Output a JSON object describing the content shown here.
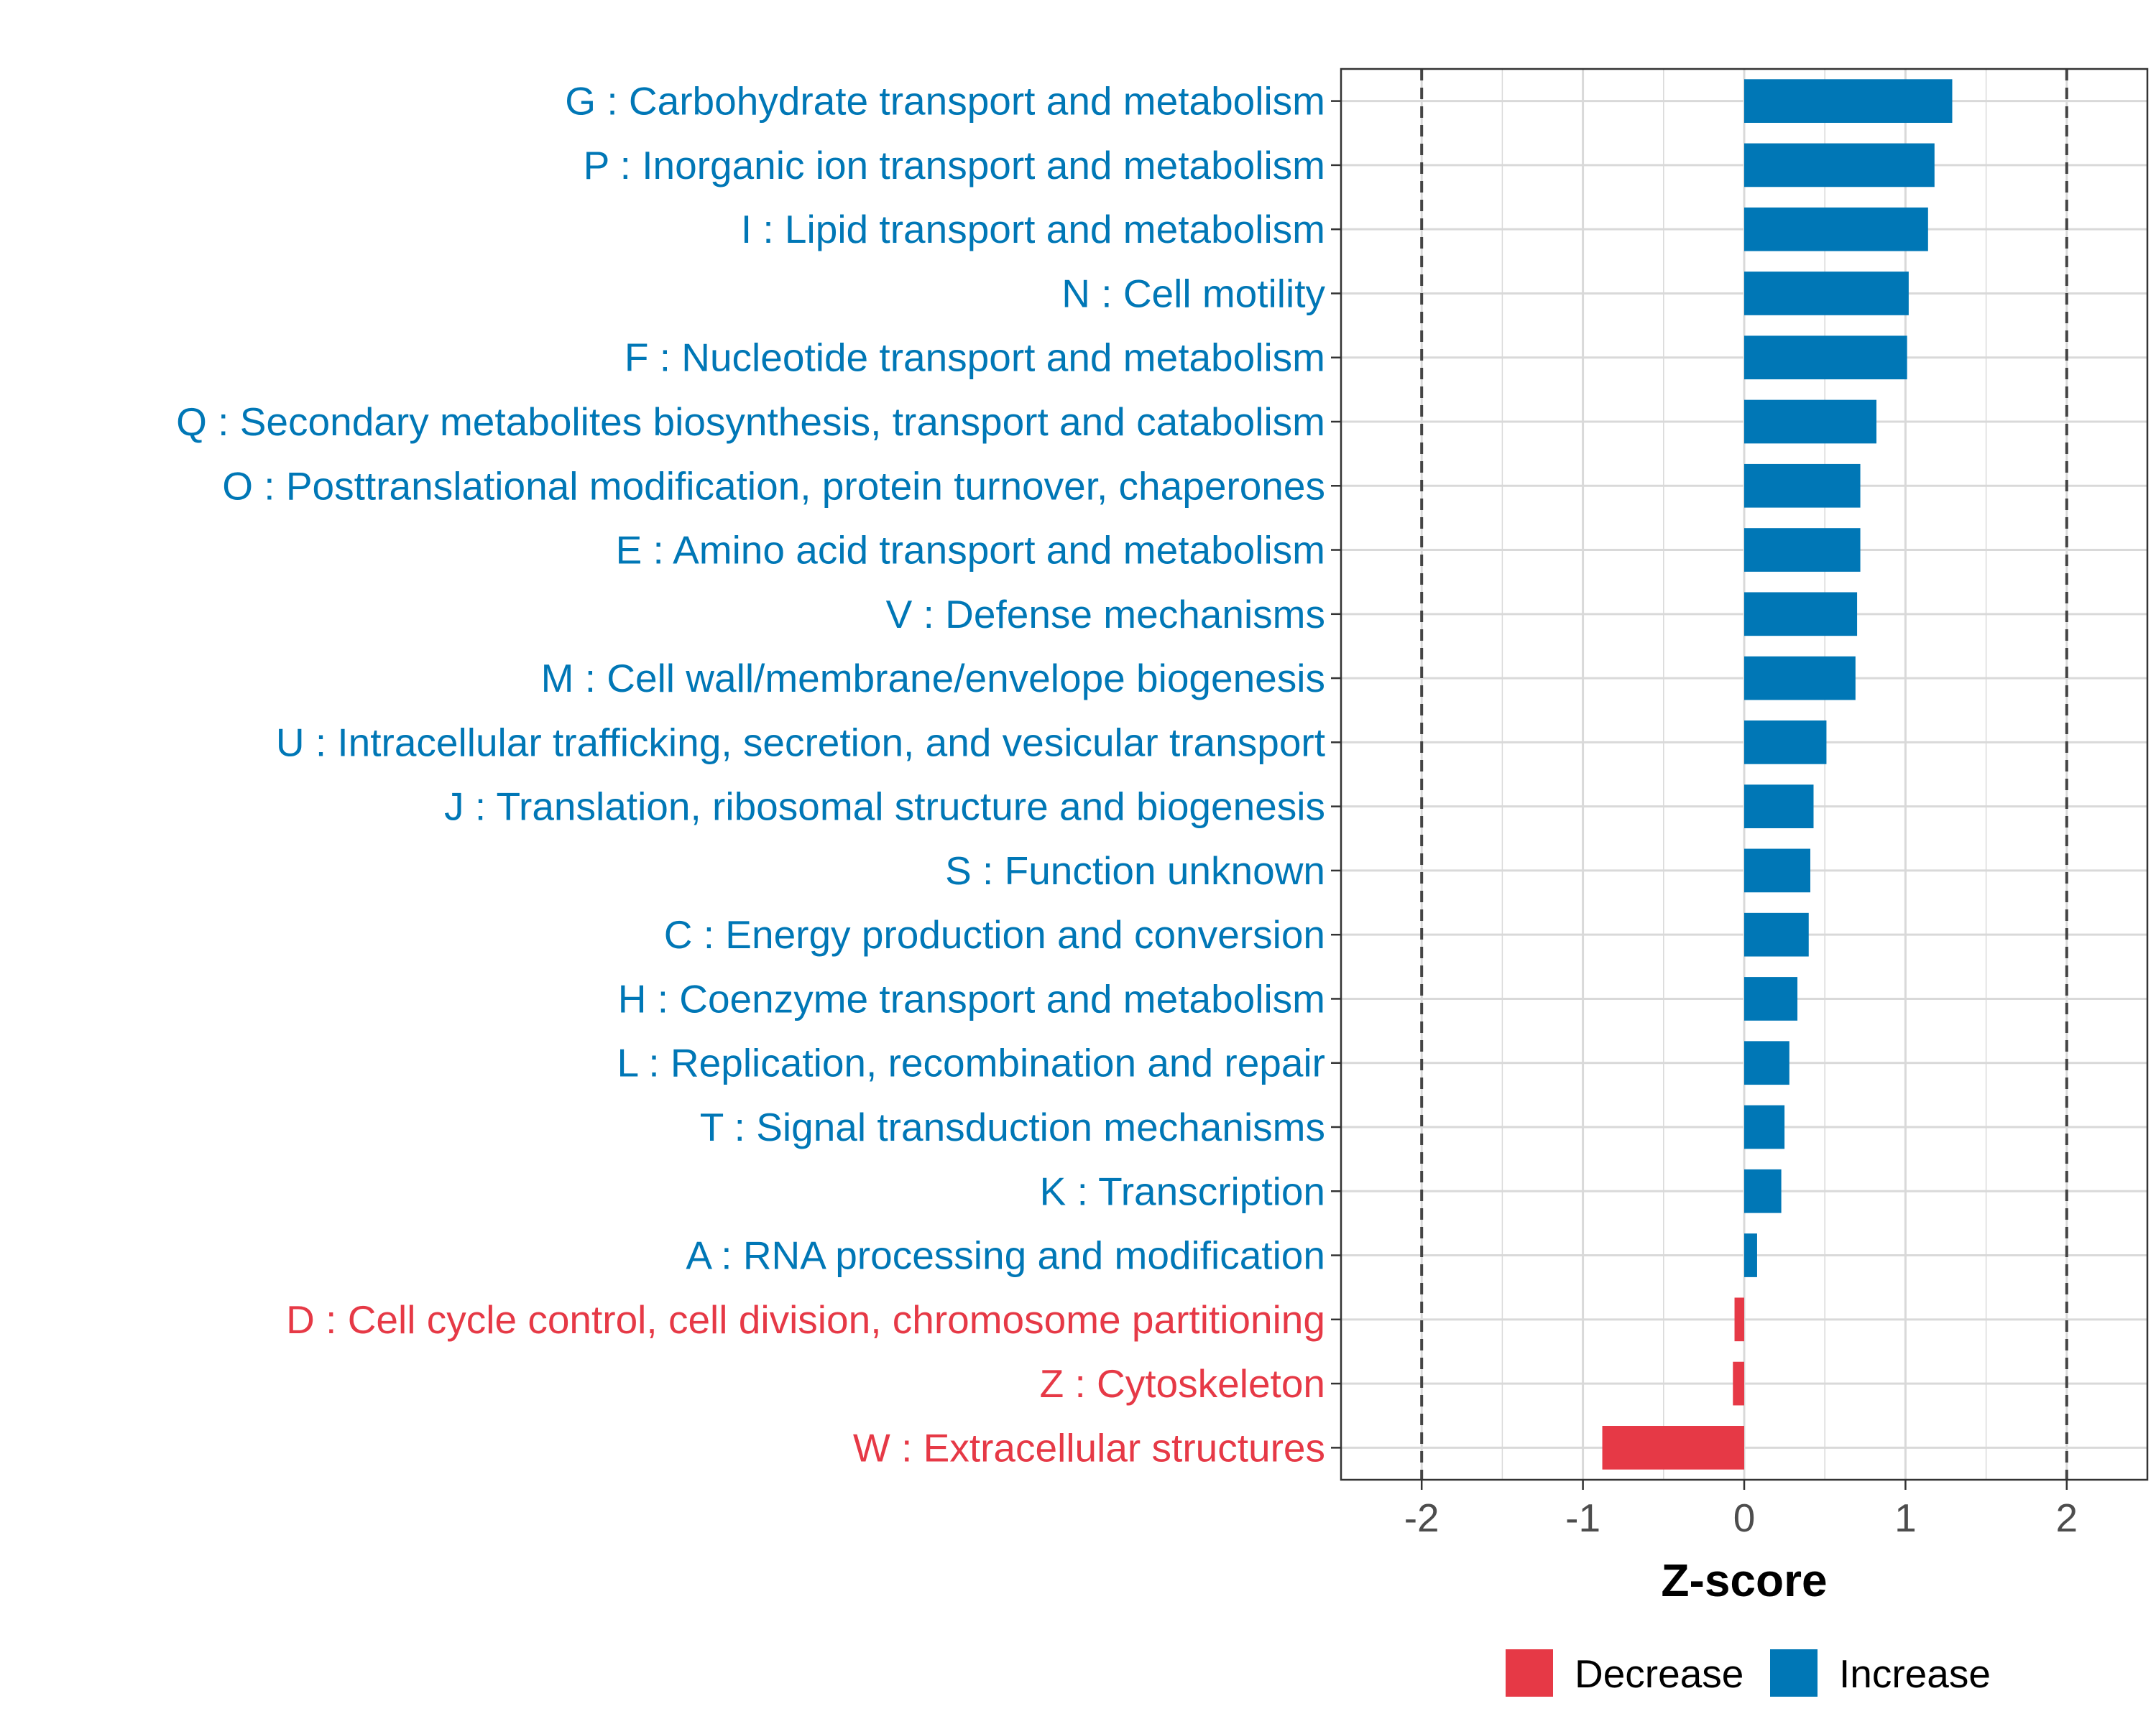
{
  "chart_data": {
    "type": "bar",
    "orientation": "horizontal",
    "xlabel": "Z-score",
    "xlim": [
      -2.5,
      2.5
    ],
    "xticks": [
      -2,
      -1,
      0,
      1,
      2
    ],
    "xtick_labels": [
      "-2",
      "-1",
      "0",
      "1",
      "2"
    ],
    "reference_lines": [
      -2,
      2
    ],
    "grid": true,
    "legend_position": "bottom",
    "colors": {
      "Decrease": "#E63946",
      "Increase": "#0077B6"
    },
    "legend": [
      {
        "label": "Decrease",
        "color": "#E63946"
      },
      {
        "label": "Increase",
        "color": "#0077B6"
      }
    ],
    "categories": [
      "G : Carbohydrate transport and metabolism",
      "P : Inorganic ion transport and metabolism",
      "I : Lipid transport and metabolism",
      "N : Cell motility",
      "F : Nucleotide transport and metabolism",
      "Q : Secondary metabolites biosynthesis, transport and catabolism",
      "O : Posttranslational modification, protein turnover, chaperones",
      "E : Amino acid transport and metabolism",
      "V : Defense mechanisms",
      "M : Cell wall/membrane/envelope biogenesis",
      "U : Intracellular trafficking, secretion, and vesicular transport",
      "J : Translation, ribosomal structure and biogenesis",
      "S : Function unknown",
      "C : Energy production and conversion",
      "H : Coenzyme transport and metabolism",
      "L : Replication, recombination and repair",
      "T : Signal transduction mechanisms",
      "K : Transcription",
      "A : RNA processing and modification",
      "D : Cell cycle control, cell division, chromosome partitioning",
      "Z : Cytoskeleton",
      "W : Extracellular structures"
    ],
    "values": [
      1.29,
      1.18,
      1.14,
      1.02,
      1.01,
      0.82,
      0.72,
      0.72,
      0.7,
      0.69,
      0.51,
      0.43,
      0.41,
      0.4,
      0.33,
      0.28,
      0.25,
      0.23,
      0.08,
      -0.06,
      -0.07,
      -0.88
    ],
    "direction": [
      "Increase",
      "Increase",
      "Increase",
      "Increase",
      "Increase",
      "Increase",
      "Increase",
      "Increase",
      "Increase",
      "Increase",
      "Increase",
      "Increase",
      "Increase",
      "Increase",
      "Increase",
      "Increase",
      "Increase",
      "Increase",
      "Increase",
      "Decrease",
      "Decrease",
      "Decrease"
    ]
  }
}
